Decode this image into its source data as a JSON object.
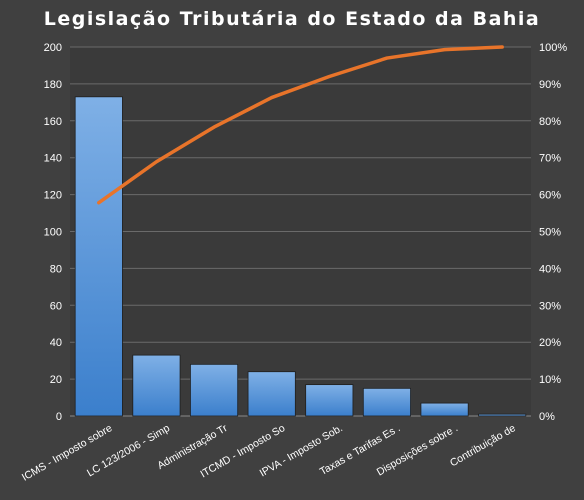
{
  "chart_data": {
    "type": "bar",
    "title": "Legislação  Tributária  do Estado  da Bahia",
    "categories": [
      "ICMS - Imposto sobre",
      "LC 123/2006 - Simp",
      "Administração Tr",
      "ITCMD - Imposto So",
      "IPVA - Imposto Sob.",
      "Taxas e Tarifas Es .",
      "Disposições sobre .",
      "Contribuição de"
    ],
    "series": [
      {
        "type": "bar",
        "axis": "left",
        "values": [
          173,
          33,
          28,
          24,
          17,
          15,
          7,
          1
        ]
      },
      {
        "type": "line",
        "axis": "right",
        "values": [
          57.8,
          68.9,
          78.3,
          86.3,
          92.0,
          97.0,
          99.3,
          100
        ]
      }
    ],
    "y_left": {
      "min": 0,
      "max": 200,
      "ticks": [
        "0",
        "20",
        "40",
        "60",
        "80",
        "100",
        "120",
        "140",
        "160",
        "180",
        "200"
      ]
    },
    "y_right": {
      "min": 0,
      "max": 100,
      "ticks": [
        "0%",
        "10%",
        "20%",
        "30%",
        "40%",
        "50%",
        "60%",
        "70%",
        "80%",
        "90%",
        "100%"
      ]
    },
    "grid": true,
    "legend": "none",
    "colors": {
      "background": "#404040",
      "plot_area": "#3a3a3a",
      "grid": "#6a6a6a",
      "bar_top": "#7fb0e6",
      "bar_bottom": "#3b7fcc",
      "line": "#e8742a",
      "text": "#ffffff"
    }
  }
}
